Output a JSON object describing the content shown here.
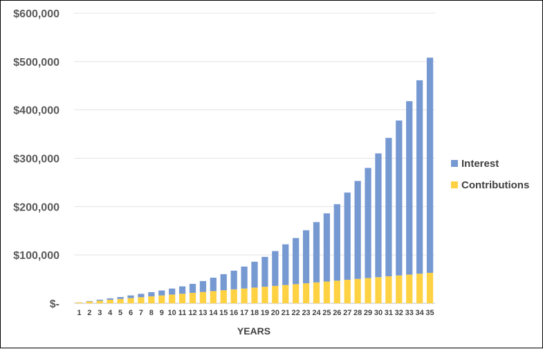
{
  "chart_data": {
    "type": "bar",
    "stacked": true,
    "xlabel": "YEARS",
    "ylabel": "",
    "ylim": [
      0,
      600000
    ],
    "yticks": [
      0,
      100000,
      200000,
      300000,
      400000,
      500000,
      600000
    ],
    "ytick_labels": [
      "$-",
      "$100,000",
      "$200,000",
      "$300,000",
      "$400,000",
      "$500,000",
      "$600,000"
    ],
    "grid": true,
    "legend_position": "right",
    "categories": [
      "1",
      "2",
      "3",
      "4",
      "5",
      "6",
      "7",
      "8",
      "9",
      "10",
      "11",
      "12",
      "13",
      "14",
      "15",
      "16",
      "17",
      "18",
      "19",
      "20",
      "21",
      "22",
      "23",
      "24",
      "25",
      "26",
      "27",
      "28",
      "29",
      "30",
      "31",
      "32",
      "33",
      "34",
      "35"
    ],
    "series": [
      {
        "name": "Contributions",
        "color": "#FFD243",
        "values": [
          1800,
          3600,
          5400,
          7200,
          9000,
          10800,
          12600,
          14400,
          16200,
          18000,
          19800,
          21600,
          23400,
          25200,
          27000,
          28800,
          30600,
          32400,
          34200,
          36000,
          37800,
          39600,
          41400,
          43200,
          45000,
          46800,
          48600,
          50400,
          52200,
          54000,
          55800,
          57600,
          59400,
          61200,
          63000
        ]
      },
      {
        "name": "Interest",
        "color": "#7699D2",
        "values": [
          200,
          1000,
          2000,
          3000,
          4000,
          5500,
          7000,
          8600,
          10300,
          12500,
          15200,
          18600,
          22600,
          27800,
          33300,
          38700,
          45400,
          53600,
          61800,
          72000,
          84200,
          95400,
          109600,
          124800,
          141000,
          158200,
          180400,
          202600,
          227800,
          256000,
          286200,
          320400,
          358600,
          400000,
          445000
        ]
      }
    ]
  }
}
